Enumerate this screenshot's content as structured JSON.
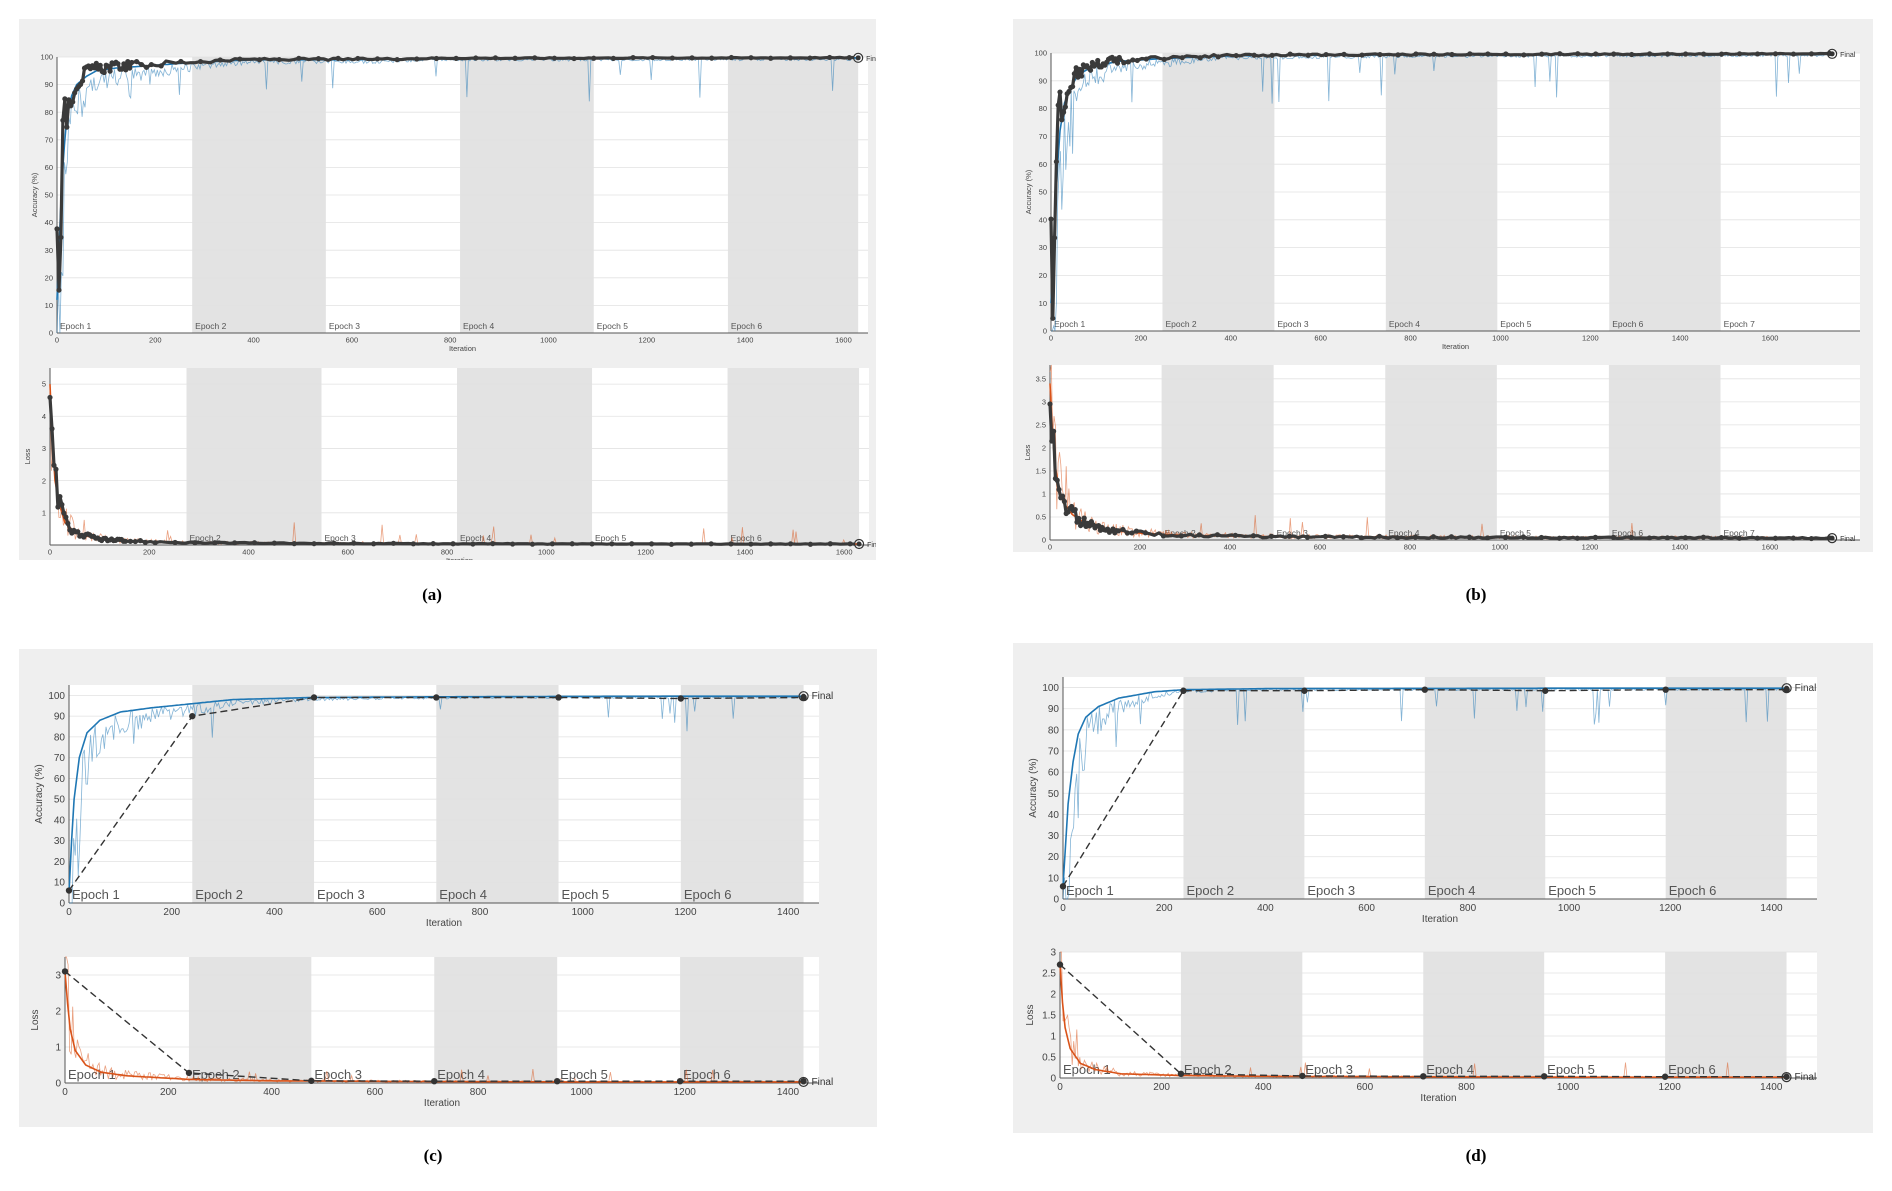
{
  "labels": {
    "final": "Final",
    "ylabel_acc": "Accuracy (%)",
    "ylabel_loss": "Loss",
    "xlabel": "Iteration"
  },
  "colors": {
    "acc": "#1f77b4",
    "loss": "#d95319",
    "smooth": "#3a3a3a",
    "epoch_band": "#e3e3e3",
    "grid": "#e2e2e2",
    "panel_bg": "#efefef"
  },
  "chart_data": [
    {
      "id": "a",
      "caption": "(a)",
      "type": "line",
      "xlim": [
        0,
        1650
      ],
      "xticks": [
        0,
        200,
        400,
        600,
        800,
        1000,
        1200,
        1400,
        1600
      ],
      "epochs": [
        [
          "Epoch 1",
          0,
          275
        ],
        [
          "Epoch 2",
          275,
          547
        ],
        [
          "Epoch 3",
          547,
          820
        ],
        [
          "Epoch 4",
          820,
          1092
        ],
        [
          "Epoch 5",
          1092,
          1365
        ],
        [
          "Epoch 6",
          1365,
          1630
        ]
      ],
      "accuracy": {
        "ylim": [
          0,
          100
        ],
        "yticks": [
          0,
          10,
          20,
          30,
          40,
          50,
          60,
          70,
          80,
          90,
          100
        ],
        "validation": "dense",
        "curve": [
          [
            0,
            12
          ],
          [
            5,
            35
          ],
          [
            10,
            55
          ],
          [
            15,
            68
          ],
          [
            20,
            78
          ],
          [
            30,
            86
          ],
          [
            40,
            90
          ],
          [
            60,
            93
          ],
          [
            80,
            95
          ],
          [
            120,
            96
          ],
          [
            200,
            97
          ],
          [
            275,
            98
          ],
          [
            400,
            99
          ],
          [
            600,
            99
          ],
          [
            800,
            99.5
          ],
          [
            1000,
            99.5
          ],
          [
            1200,
            99.6
          ],
          [
            1400,
            99.6
          ],
          [
            1630,
            99.7
          ]
        ]
      },
      "loss": {
        "ylim": [
          0,
          5.5
        ],
        "yticks": [
          1,
          2,
          3,
          4,
          5
        ],
        "validation": "dense",
        "curve": [
          [
            0,
            5
          ],
          [
            5,
            3.2
          ],
          [
            10,
            2
          ],
          [
            20,
            1.2
          ],
          [
            30,
            0.7
          ],
          [
            50,
            0.4
          ],
          [
            80,
            0.25
          ],
          [
            120,
            0.15
          ],
          [
            200,
            0.1
          ],
          [
            300,
            0.07
          ],
          [
            500,
            0.05
          ],
          [
            800,
            0.04
          ],
          [
            1100,
            0.03
          ],
          [
            1400,
            0.03
          ],
          [
            1630,
            0.03
          ]
        ]
      }
    },
    {
      "id": "b",
      "caption": "(b)",
      "type": "line",
      "xlim": [
        0,
        1800
      ],
      "xticks": [
        0,
        200,
        400,
        600,
        800,
        1000,
        1200,
        1400,
        1600
      ],
      "epochs": [
        [
          "Epoch 1",
          0,
          248
        ],
        [
          "Epoch 2",
          248,
          497
        ],
        [
          "Epoch 3",
          497,
          745
        ],
        [
          "Epoch 4",
          745,
          993
        ],
        [
          "Epoch 5",
          993,
          1242
        ],
        [
          "Epoch 6",
          1242,
          1490
        ],
        [
          "Epoch 7",
          1490,
          1738
        ]
      ],
      "accuracy": {
        "ylim": [
          0,
          100
        ],
        "yticks": [
          0,
          10,
          20,
          30,
          40,
          50,
          60,
          70,
          80,
          90,
          100
        ],
        "validation": "dense",
        "curve": [
          [
            0,
            10
          ],
          [
            5,
            25
          ],
          [
            10,
            45
          ],
          [
            15,
            60
          ],
          [
            20,
            72
          ],
          [
            30,
            82
          ],
          [
            45,
            88
          ],
          [
            60,
            92
          ],
          [
            90,
            95
          ],
          [
            150,
            97
          ],
          [
            248,
            98
          ],
          [
            400,
            99
          ],
          [
            700,
            99.3
          ],
          [
            1000,
            99.4
          ],
          [
            1300,
            99.5
          ],
          [
            1500,
            99.6
          ],
          [
            1738,
            99.7
          ]
        ]
      },
      "loss": {
        "ylim": [
          0,
          3.8
        ],
        "yticks": [
          0,
          0.5,
          1,
          1.5,
          2,
          2.5,
          3,
          3.5
        ],
        "validation": "dense",
        "curve": [
          [
            0,
            3.4
          ],
          [
            5,
            2.4
          ],
          [
            10,
            1.7
          ],
          [
            20,
            1.1
          ],
          [
            30,
            0.8
          ],
          [
            50,
            0.55
          ],
          [
            80,
            0.35
          ],
          [
            120,
            0.22
          ],
          [
            200,
            0.15
          ],
          [
            300,
            0.1
          ],
          [
            500,
            0.07
          ],
          [
            800,
            0.06
          ],
          [
            1100,
            0.05
          ],
          [
            1400,
            0.05
          ],
          [
            1738,
            0.04
          ]
        ]
      }
    },
    {
      "id": "c",
      "caption": "(c)",
      "type": "line",
      "xlim": [
        0,
        1460
      ],
      "xticks": [
        0,
        200,
        400,
        600,
        800,
        1000,
        1200,
        1400
      ],
      "epochs": [
        [
          "Epoch 1",
          0,
          240
        ],
        [
          "Epoch 2",
          240,
          477
        ],
        [
          "Epoch 3",
          477,
          715
        ],
        [
          "Epoch 4",
          715,
          953
        ],
        [
          "Epoch 5",
          953,
          1191
        ],
        [
          "Epoch 6",
          1191,
          1430
        ]
      ],
      "accuracy": {
        "ylim": [
          0,
          105
        ],
        "yticks": [
          0,
          10,
          20,
          30,
          40,
          50,
          60,
          70,
          80,
          90,
          100
        ],
        "validation_points": [
          [
            0,
            6
          ],
          [
            240,
            90
          ],
          [
            477,
            99
          ],
          [
            715,
            99
          ],
          [
            953,
            99
          ],
          [
            1191,
            98.5
          ],
          [
            1430,
            99
          ]
        ],
        "curve": [
          [
            0,
            5
          ],
          [
            5,
            30
          ],
          [
            10,
            50
          ],
          [
            20,
            70
          ],
          [
            35,
            82
          ],
          [
            60,
            88
          ],
          [
            100,
            92
          ],
          [
            160,
            94
          ],
          [
            240,
            96
          ],
          [
            320,
            98
          ],
          [
            477,
            99
          ],
          [
            700,
            99.3
          ],
          [
            953,
            99.5
          ],
          [
            1200,
            99.6
          ],
          [
            1430,
            99.6
          ]
        ]
      },
      "loss": {
        "ylim": [
          0,
          3.5
        ],
        "yticks": [
          0,
          1,
          2,
          3
        ],
        "validation_points": [
          [
            0,
            3.1
          ],
          [
            240,
            0.28
          ],
          [
            477,
            0.06
          ],
          [
            715,
            0.05
          ],
          [
            953,
            0.05
          ],
          [
            1191,
            0.05
          ],
          [
            1430,
            0.05
          ]
        ],
        "curve": [
          [
            0,
            3.1
          ],
          [
            5,
            2.2
          ],
          [
            10,
            1.5
          ],
          [
            20,
            0.9
          ],
          [
            40,
            0.5
          ],
          [
            70,
            0.3
          ],
          [
            120,
            0.2
          ],
          [
            240,
            0.1
          ],
          [
            400,
            0.06
          ],
          [
            700,
            0.04
          ],
          [
            1000,
            0.03
          ],
          [
            1430,
            0.03
          ]
        ]
      }
    },
    {
      "id": "d",
      "caption": "(d)",
      "type": "line",
      "xlim": [
        0,
        1490
      ],
      "xticks": [
        0,
        200,
        400,
        600,
        800,
        1000,
        1200,
        1400
      ],
      "epochs": [
        [
          "Epoch 1",
          0,
          238
        ],
        [
          "Epoch 2",
          238,
          477
        ],
        [
          "Epoch 3",
          477,
          715
        ],
        [
          "Epoch 4",
          715,
          953
        ],
        [
          "Epoch 5",
          953,
          1191
        ],
        [
          "Epoch 6",
          1191,
          1430
        ]
      ],
      "accuracy": {
        "ylim": [
          0,
          105
        ],
        "yticks": [
          0,
          10,
          20,
          30,
          40,
          50,
          60,
          70,
          80,
          90,
          100
        ],
        "validation_points": [
          [
            0,
            6
          ],
          [
            238,
            98.5
          ],
          [
            477,
            98.5
          ],
          [
            715,
            99
          ],
          [
            953,
            98.5
          ],
          [
            1191,
            99
          ],
          [
            1430,
            99
          ]
        ],
        "curve": [
          [
            0,
            6
          ],
          [
            5,
            25
          ],
          [
            10,
            45
          ],
          [
            20,
            65
          ],
          [
            30,
            78
          ],
          [
            45,
            86
          ],
          [
            70,
            91
          ],
          [
            110,
            95
          ],
          [
            180,
            98
          ],
          [
            238,
            99
          ],
          [
            400,
            99.5
          ],
          [
            700,
            99.6
          ],
          [
            1000,
            99.7
          ],
          [
            1430,
            99.7
          ]
        ]
      },
      "loss": {
        "ylim": [
          0,
          3
        ],
        "yticks": [
          0,
          0.5,
          1,
          1.5,
          2,
          2.5,
          3
        ],
        "validation_points": [
          [
            0,
            2.7
          ],
          [
            238,
            0.1
          ],
          [
            477,
            0.05
          ],
          [
            715,
            0.04
          ],
          [
            953,
            0.04
          ],
          [
            1191,
            0.03
          ],
          [
            1430,
            0.03
          ]
        ],
        "curve": [
          [
            0,
            2.7
          ],
          [
            5,
            1.8
          ],
          [
            10,
            1.2
          ],
          [
            20,
            0.7
          ],
          [
            40,
            0.35
          ],
          [
            70,
            0.2
          ],
          [
            120,
            0.1
          ],
          [
            238,
            0.06
          ],
          [
            400,
            0.04
          ],
          [
            700,
            0.03
          ],
          [
            1000,
            0.02
          ],
          [
            1430,
            0.02
          ]
        ]
      }
    }
  ]
}
